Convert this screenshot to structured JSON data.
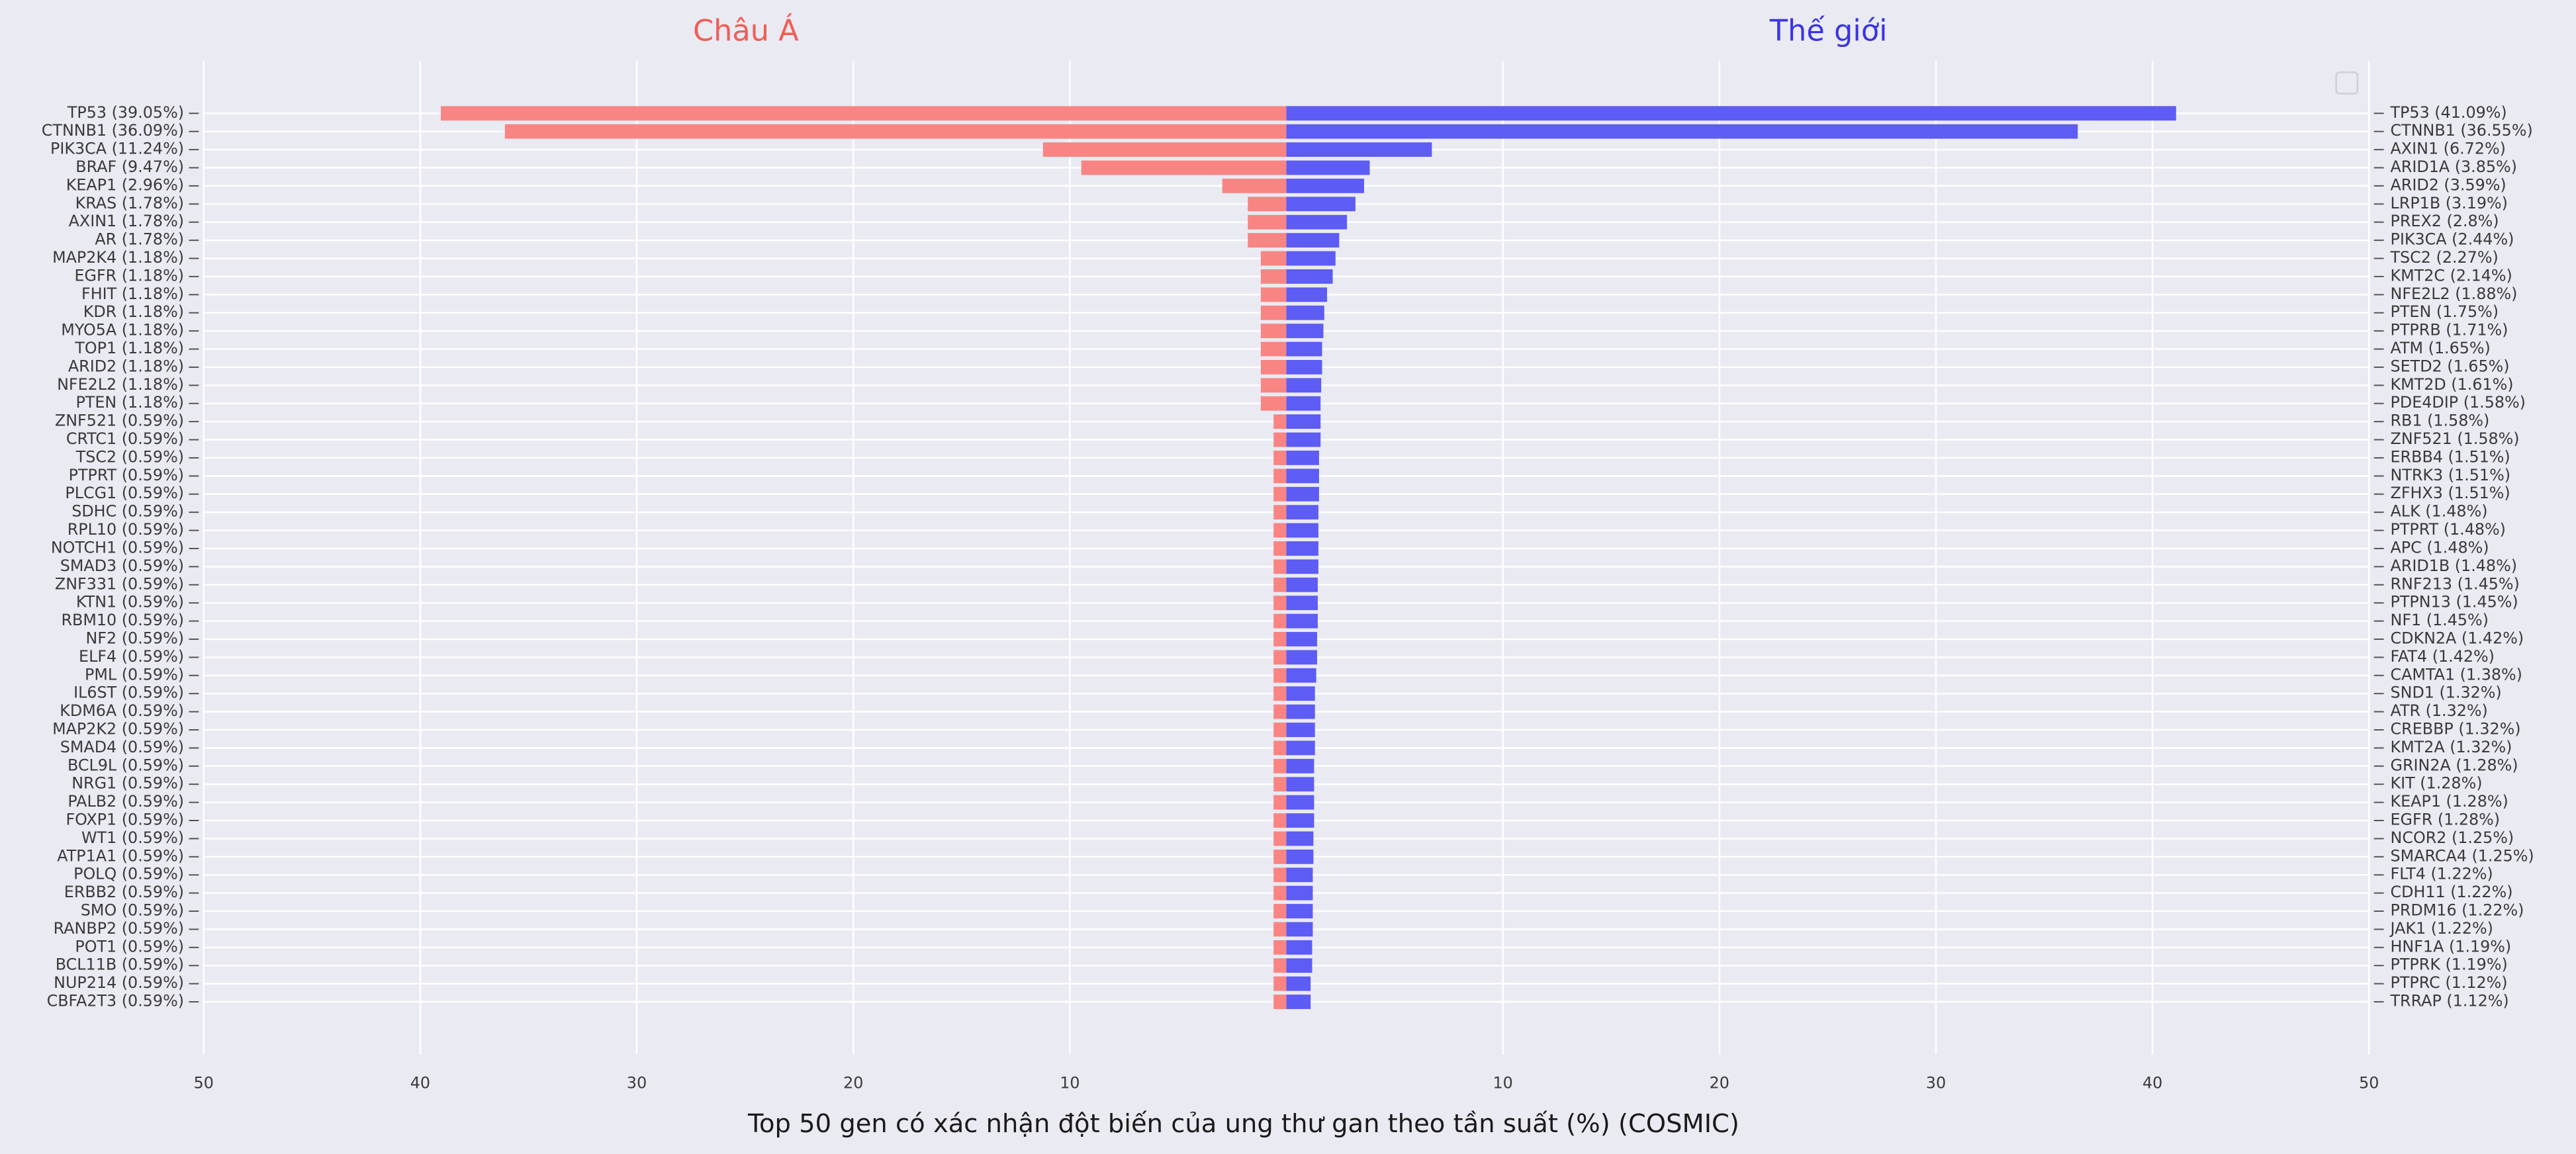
{
  "chart_data": {
    "type": "butterfly",
    "xlabel": "Top 50 gen có xác nhận đột biến của ung thư gan theo tần suất (%) (COSMIC)",
    "left": {
      "title": "Châu Á",
      "title_color": "#f25c54",
      "color": "#f88583",
      "xlim": [
        50,
        0
      ],
      "xticks": [
        50,
        40,
        30,
        20,
        10
      ],
      "categories": [
        "TP53 (39.05%)",
        "CTNNB1 (36.09%)",
        "PIK3CA (11.24%)",
        "BRAF (9.47%)",
        "KEAP1 (2.96%)",
        "KRAS (1.78%)",
        "AXIN1 (1.78%)",
        "AR (1.78%)",
        "MAP2K4 (1.18%)",
        "EGFR (1.18%)",
        "FHIT (1.18%)",
        "KDR (1.18%)",
        "MYO5A (1.18%)",
        "TOP1 (1.18%)",
        "ARID2 (1.18%)",
        "NFE2L2 (1.18%)",
        "PTEN (1.18%)",
        "ZNF521 (0.59%)",
        "CRTC1 (0.59%)",
        "TSC2 (0.59%)",
        "PTPRT (0.59%)",
        "PLCG1 (0.59%)",
        "SDHC (0.59%)",
        "RPL10 (0.59%)",
        "NOTCH1 (0.59%)",
        "SMAD3 (0.59%)",
        "ZNF331 (0.59%)",
        "KTN1 (0.59%)",
        "RBM10 (0.59%)",
        "NF2 (0.59%)",
        "ELF4 (0.59%)",
        "PML (0.59%)",
        "IL6ST (0.59%)",
        "KDM6A (0.59%)",
        "MAP2K2 (0.59%)",
        "SMAD4 (0.59%)",
        "BCL9L (0.59%)",
        "NRG1 (0.59%)",
        "PALB2 (0.59%)",
        "FOXP1 (0.59%)",
        "WT1 (0.59%)",
        "ATP1A1 (0.59%)",
        "POLQ (0.59%)",
        "ERBB2 (0.59%)",
        "SMO (0.59%)",
        "RANBP2 (0.59%)",
        "POT1 (0.59%)",
        "BCL11B (0.59%)",
        "NUP214 (0.59%)",
        "CBFA2T3 (0.59%)"
      ],
      "values": [
        39.05,
        36.09,
        11.24,
        9.47,
        2.96,
        1.78,
        1.78,
        1.78,
        1.18,
        1.18,
        1.18,
        1.18,
        1.18,
        1.18,
        1.18,
        1.18,
        1.18,
        0.59,
        0.59,
        0.59,
        0.59,
        0.59,
        0.59,
        0.59,
        0.59,
        0.59,
        0.59,
        0.59,
        0.59,
        0.59,
        0.59,
        0.59,
        0.59,
        0.59,
        0.59,
        0.59,
        0.59,
        0.59,
        0.59,
        0.59,
        0.59,
        0.59,
        0.59,
        0.59,
        0.59,
        0.59,
        0.59,
        0.59,
        0.59,
        0.59
      ]
    },
    "right": {
      "title": "Thế giới",
      "title_color": "#3a35e0",
      "color": "#5d5cf5",
      "xlim": [
        0,
        50
      ],
      "xticks": [
        10,
        20,
        30,
        40,
        50
      ],
      "categories": [
        "TP53 (41.09%)",
        "CTNNB1 (36.55%)",
        "AXIN1 (6.72%)",
        "ARID1A (3.85%)",
        "ARID2 (3.59%)",
        "LRP1B (3.19%)",
        "PREX2 (2.8%)",
        "PIK3CA (2.44%)",
        "TSC2 (2.27%)",
        "KMT2C (2.14%)",
        "NFE2L2 (1.88%)",
        "PTEN (1.75%)",
        "PTPRB (1.71%)",
        "ATM (1.65%)",
        "SETD2 (1.65%)",
        "KMT2D (1.61%)",
        "PDE4DIP (1.58%)",
        "RB1 (1.58%)",
        "ZNF521 (1.58%)",
        "ERBB4 (1.51%)",
        "NTRK3 (1.51%)",
        "ZFHX3 (1.51%)",
        "ALK (1.48%)",
        "PTPRT (1.48%)",
        "APC (1.48%)",
        "ARID1B (1.48%)",
        "RNF213 (1.45%)",
        "PTPN13 (1.45%)",
        "NF1 (1.45%)",
        "CDKN2A (1.42%)",
        "FAT4 (1.42%)",
        "CAMTA1 (1.38%)",
        "SND1 (1.32%)",
        "ATR (1.32%)",
        "CREBBP (1.32%)",
        "KMT2A (1.32%)",
        "GRIN2A (1.28%)",
        "KIT (1.28%)",
        "KEAP1 (1.28%)",
        "EGFR (1.28%)",
        "NCOR2 (1.25%)",
        "SMARCA4 (1.25%)",
        "FLT4 (1.22%)",
        "CDH11 (1.22%)",
        "PRDM16 (1.22%)",
        "JAK1 (1.22%)",
        "HNF1A (1.19%)",
        "PTPRK (1.19%)",
        "PTPRC (1.12%)",
        "TRRAP (1.12%)"
      ],
      "values": [
        41.09,
        36.55,
        6.72,
        3.85,
        3.59,
        3.19,
        2.8,
        2.44,
        2.27,
        2.14,
        1.88,
        1.75,
        1.71,
        1.65,
        1.65,
        1.61,
        1.58,
        1.58,
        1.58,
        1.51,
        1.51,
        1.51,
        1.48,
        1.48,
        1.48,
        1.48,
        1.45,
        1.45,
        1.45,
        1.42,
        1.42,
        1.38,
        1.32,
        1.32,
        1.32,
        1.32,
        1.28,
        1.28,
        1.28,
        1.28,
        1.25,
        1.25,
        1.22,
        1.22,
        1.22,
        1.22,
        1.19,
        1.19,
        1.12,
        1.12
      ]
    },
    "grid": true
  }
}
